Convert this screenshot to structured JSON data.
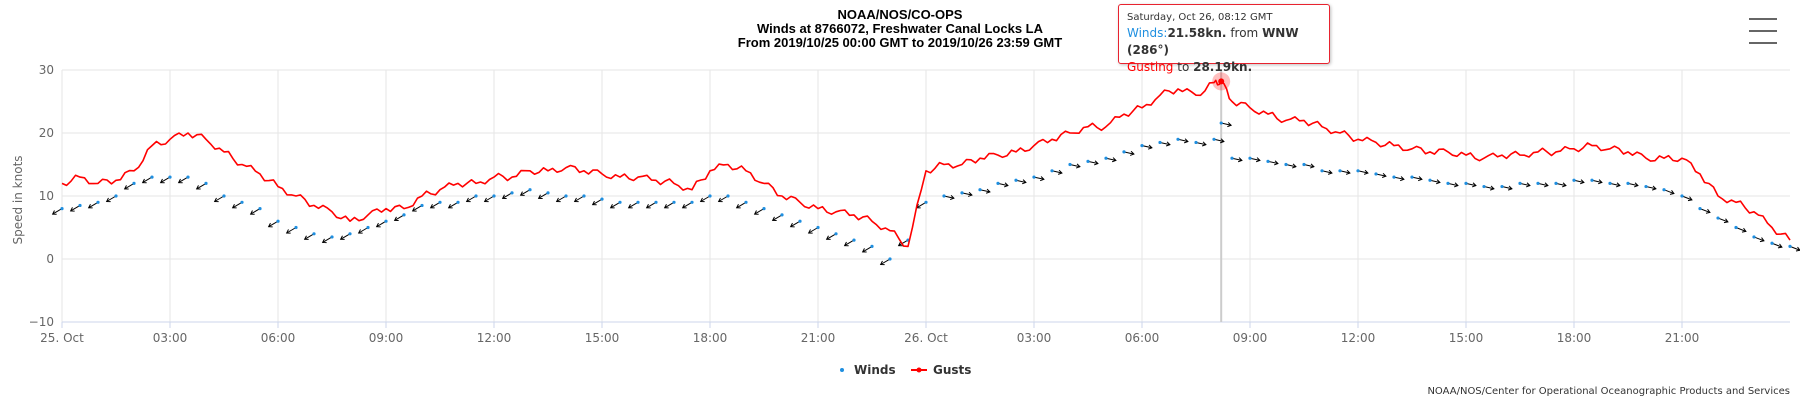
{
  "header": {
    "title_line1": "NOAA/NOS/CO-OPS",
    "title_line2": "Winds at 8766072, Freshwater Canal Locks LA",
    "title_line3": "From 2019/10/25 00:00 GMT to 2019/10/26 23:59 GMT"
  },
  "tooltip": {
    "date": "Saturday, Oct 26, 08:12 GMT",
    "winds_label": "Winds:",
    "winds_value": "21.58kn.",
    "from_text": " from ",
    "direction": "WNW (286°)",
    "gust_label": "Gusting",
    "gust_to": " to ",
    "gust_value": "28.19kn."
  },
  "legend": {
    "winds": "Winds",
    "gusts": "Gusts"
  },
  "credit": "NOAA/NOS/Center for Operational Oceanographic Products and Services",
  "colors": {
    "gusts": "#ff0000",
    "winds": "#1f8fe0",
    "arrow": "#000000",
    "grid": "#e6e6e6",
    "axis": "#ccd6eb"
  },
  "chart_data": {
    "type": "line",
    "ylabel": "Speed in knots",
    "ylim": [
      -10,
      30
    ],
    "yticks": [
      "30",
      "20",
      "10",
      "0",
      "−10"
    ],
    "xlim_hours": [
      0,
      48
    ],
    "xticks": [
      {
        "h": 0,
        "label": "25. Oct"
      },
      {
        "h": 3,
        "label": "03:00"
      },
      {
        "h": 6,
        "label": "06:00"
      },
      {
        "h": 9,
        "label": "09:00"
      },
      {
        "h": 12,
        "label": "12:00"
      },
      {
        "h": 15,
        "label": "15:00"
      },
      {
        "h": 18,
        "label": "18:00"
      },
      {
        "h": 21,
        "label": "21:00"
      },
      {
        "h": 24,
        "label": "26. Oct"
      },
      {
        "h": 27,
        "label": "03:00"
      },
      {
        "h": 30,
        "label": "06:00"
      },
      {
        "h": 33,
        "label": "09:00"
      },
      {
        "h": 36,
        "label": "12:00"
      },
      {
        "h": 39,
        "label": "15:00"
      },
      {
        "h": 42,
        "label": "18:00"
      },
      {
        "h": 45,
        "label": "21:00"
      }
    ],
    "highlight_hour": 32.2,
    "series": [
      {
        "name": "Gusts",
        "x": [
          0,
          0.5,
          1,
          1.5,
          2,
          2.5,
          3,
          3.5,
          4,
          4.5,
          5,
          5.5,
          6,
          6.5,
          7,
          7.5,
          8,
          8.5,
          9,
          9.5,
          10,
          10.5,
          11,
          11.5,
          12,
          12.5,
          13,
          13.5,
          14,
          14.5,
          15,
          15.5,
          16,
          16.5,
          17,
          17.5,
          18,
          18.5,
          19,
          19.5,
          20,
          20.5,
          21,
          21.5,
          22,
          22.5,
          23,
          23.5,
          24,
          24.5,
          25,
          25.5,
          26,
          26.5,
          27,
          27.5,
          28,
          28.5,
          29,
          29.5,
          30,
          30.5,
          31,
          31.5,
          32,
          32.2,
          32.5,
          33,
          33.5,
          34,
          34.5,
          35,
          35.5,
          36,
          36.5,
          37,
          37.5,
          38,
          38.5,
          39,
          39.5,
          40,
          40.5,
          41,
          41.5,
          42,
          42.5,
          43,
          43.5,
          44,
          44.5,
          45,
          45.5,
          46,
          46.5,
          47,
          47.5,
          48
        ],
        "y": [
          12,
          13,
          12,
          12.5,
          14,
          18,
          19,
          20,
          19,
          17,
          15,
          13.5,
          11.5,
          10,
          8.5,
          7.5,
          6,
          7,
          8,
          8,
          10,
          11,
          12,
          12,
          13,
          13,
          14,
          14,
          14.5,
          14,
          13.5,
          13,
          13,
          12.5,
          12,
          11,
          14,
          15,
          14,
          12,
          10,
          9,
          8,
          7.5,
          7,
          6,
          4.5,
          2,
          14,
          15,
          15,
          16,
          16.5,
          17,
          18,
          19,
          20,
          21,
          21,
          23,
          24,
          26,
          27,
          26,
          28,
          28.19,
          25,
          24,
          23,
          22,
          22,
          21,
          20,
          19,
          18.5,
          18,
          17.5,
          17,
          17,
          16.5,
          16,
          16.5,
          16.5,
          17,
          17,
          17.5,
          18,
          17.5,
          17,
          16,
          16,
          16,
          13.5,
          10,
          9,
          7.5,
          5,
          3
        ]
      },
      {
        "name": "Winds",
        "x": [
          0,
          0.5,
          1,
          1.5,
          2,
          2.5,
          3,
          3.5,
          4,
          4.5,
          5,
          5.5,
          6,
          6.5,
          7,
          7.5,
          8,
          8.5,
          9,
          9.5,
          10,
          10.5,
          11,
          11.5,
          12,
          12.5,
          13,
          13.5,
          14,
          14.5,
          15,
          15.5,
          16,
          16.5,
          17,
          17.5,
          18,
          18.5,
          19,
          19.5,
          20,
          20.5,
          21,
          21.5,
          22,
          22.5,
          23,
          23.5,
          24,
          24.5,
          25,
          25.5,
          26,
          26.5,
          27,
          27.5,
          28,
          28.5,
          29,
          29.5,
          30,
          30.5,
          31,
          31.5,
          32,
          32.2,
          32.5,
          33,
          33.5,
          34,
          34.5,
          35,
          35.5,
          36,
          36.5,
          37,
          37.5,
          38,
          38.5,
          39,
          39.5,
          40,
          40.5,
          41,
          41.5,
          42,
          42.5,
          43,
          43.5,
          44,
          44.5,
          45,
          45.5,
          46,
          46.5,
          47,
          47.5,
          48
        ],
        "y": [
          8,
          8.5,
          9,
          10,
          12,
          13,
          13,
          13,
          12,
          10,
          9,
          8,
          6,
          5,
          4,
          3.5,
          4,
          5,
          6,
          7,
          8.5,
          9,
          9,
          10,
          10,
          10.5,
          11,
          10.5,
          10,
          10,
          9.5,
          9,
          9,
          9,
          9,
          9,
          10,
          10,
          9,
          8,
          7,
          6,
          5,
          4,
          3,
          2,
          0,
          3,
          9,
          10,
          10.5,
          11,
          12,
          12.5,
          13,
          14,
          15,
          15.5,
          16,
          17,
          18,
          18.5,
          19,
          18.5,
          19,
          21.58,
          16,
          16,
          15.5,
          15,
          15,
          14,
          14,
          14,
          13.5,
          13,
          13,
          12.5,
          12,
          12,
          11.5,
          11.5,
          12,
          12,
          12,
          12.5,
          12.5,
          12,
          12,
          11.5,
          11,
          10,
          8,
          6.5,
          5,
          3.5,
          2.5,
          2
        ]
      }
    ]
  }
}
